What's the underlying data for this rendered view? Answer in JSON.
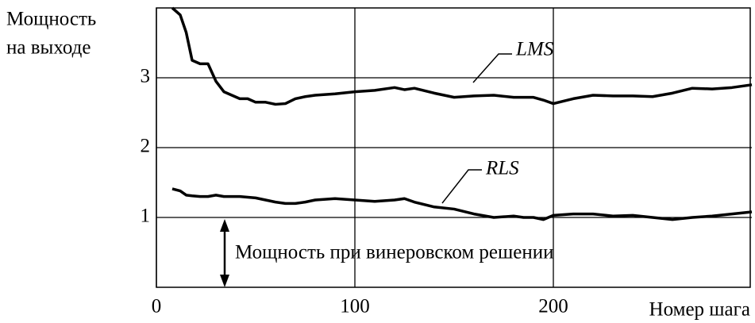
{
  "chart_data": {
    "type": "line",
    "ylabel": [
      "Мощность",
      "на выходе"
    ],
    "xlabel": "Номер шага",
    "annotation": "Мощность при винеровском решении",
    "reference_line": 1,
    "xlim": [
      0,
      300
    ],
    "xticks": [
      0,
      100,
      200
    ],
    "ylim": [
      0,
      4
    ],
    "yticks": [
      1,
      2,
      3
    ],
    "grid": true,
    "x": [
      8,
      12,
      15,
      18,
      22,
      26,
      30,
      34,
      38,
      42,
      46,
      50,
      55,
      60,
      65,
      70,
      75,
      80,
      90,
      100,
      110,
      120,
      125,
      130,
      140,
      150,
      160,
      170,
      180,
      185,
      190,
      195,
      200,
      210,
      220,
      230,
      240,
      250,
      260,
      270,
      280,
      290,
      300
    ],
    "series": [
      {
        "name": "LMS",
        "color": "#000000",
        "values": [
          4.0,
          3.9,
          3.65,
          3.25,
          3.2,
          3.2,
          2.95,
          2.8,
          2.75,
          2.7,
          2.7,
          2.65,
          2.65,
          2.62,
          2.63,
          2.7,
          2.73,
          2.75,
          2.77,
          2.8,
          2.82,
          2.86,
          2.83,
          2.85,
          2.78,
          2.72,
          2.74,
          2.75,
          2.72,
          2.72,
          2.72,
          2.68,
          2.63,
          2.7,
          2.75,
          2.74,
          2.74,
          2.73,
          2.78,
          2.85,
          2.84,
          2.86,
          2.9
        ]
      },
      {
        "name": "RLS",
        "color": "#000000",
        "values": [
          1.41,
          1.38,
          1.32,
          1.31,
          1.3,
          1.3,
          1.32,
          1.3,
          1.3,
          1.3,
          1.29,
          1.28,
          1.25,
          1.22,
          1.2,
          1.2,
          1.22,
          1.25,
          1.27,
          1.25,
          1.23,
          1.25,
          1.27,
          1.22,
          1.15,
          1.12,
          1.05,
          1.0,
          1.02,
          1.0,
          1.0,
          0.97,
          1.03,
          1.05,
          1.05,
          1.02,
          1.03,
          1.0,
          0.97,
          1.0,
          1.02,
          1.05,
          1.08
        ]
      }
    ]
  }
}
